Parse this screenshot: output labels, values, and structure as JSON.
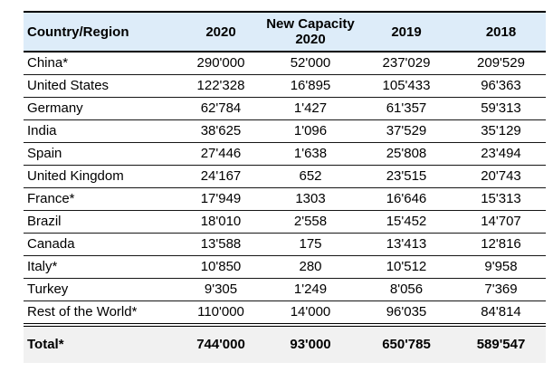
{
  "page": {
    "background": "#ffffff"
  },
  "table": {
    "header_bg": "#ddecf9",
    "total_bg": "#f1f1f1",
    "border_color": "#000000",
    "columns": [
      {
        "label": "Country/Region"
      },
      {
        "label": "2020"
      },
      {
        "label": "New Capacity\n2020"
      },
      {
        "label": "2019"
      },
      {
        "label": "2018"
      }
    ],
    "rows": [
      {
        "label": "China*",
        "values": [
          "290'000",
          "52'000",
          "237'029",
          "209'529"
        ]
      },
      {
        "label": "United States",
        "values": [
          "122'328",
          "16'895",
          "105'433",
          "96'363"
        ]
      },
      {
        "label": "Germany",
        "values": [
          "62'784",
          "1'427",
          "61'357",
          "59'313"
        ]
      },
      {
        "label": "India",
        "values": [
          "38'625",
          "1'096",
          "37'529",
          "35'129"
        ]
      },
      {
        "label": "Spain",
        "values": [
          "27'446",
          "1'638",
          "25'808",
          "23'494"
        ]
      },
      {
        "label": "United Kingdom",
        "values": [
          "24'167",
          "652",
          "23'515",
          "20'743"
        ]
      },
      {
        "label": "France*",
        "values": [
          "17'949",
          "1303",
          "16'646",
          "15'313"
        ]
      },
      {
        "label": "Brazil",
        "values": [
          "18'010",
          "2'558",
          "15'452",
          "14'707"
        ]
      },
      {
        "label": "Canada",
        "values": [
          "13'588",
          "175",
          "13'413",
          "12'816"
        ]
      },
      {
        "label": "Italy*",
        "values": [
          "10'850",
          "280",
          "10'512",
          "9'958"
        ]
      },
      {
        "label": "Turkey",
        "values": [
          "9'305",
          "1'249",
          "8'056",
          "7'369"
        ]
      },
      {
        "label": "Rest of the World*",
        "values": [
          "110'000",
          "14'000",
          "96'035",
          "84'814"
        ]
      }
    ],
    "total_row": {
      "label": "Total*",
      "values": [
        "744'000",
        "93'000",
        "650'785",
        "589'547"
      ]
    }
  },
  "chart_data": {
    "type": "table",
    "title": "",
    "columns": [
      "Country/Region",
      "2020",
      "New Capacity 2020",
      "2019",
      "2018"
    ],
    "rows": [
      [
        "China*",
        "290'000",
        "52'000",
        "237'029",
        "209'529"
      ],
      [
        "United States",
        "122'328",
        "16'895",
        "105'433",
        "96'363"
      ],
      [
        "Germany",
        "62'784",
        "1'427",
        "61'357",
        "59'313"
      ],
      [
        "India",
        "38'625",
        "1'096",
        "37'529",
        "35'129"
      ],
      [
        "Spain",
        "27'446",
        "1'638",
        "25'808",
        "23'494"
      ],
      [
        "United Kingdom",
        "24'167",
        "652",
        "23'515",
        "20'743"
      ],
      [
        "France*",
        "17'949",
        "1303",
        "16'646",
        "15'313"
      ],
      [
        "Brazil",
        "18'010",
        "2'558",
        "15'452",
        "14'707"
      ],
      [
        "Canada",
        "13'588",
        "175",
        "13'413",
        "12'816"
      ],
      [
        "Italy*",
        "10'850",
        "280",
        "10'512",
        "9'958"
      ],
      [
        "Turkey",
        "9'305",
        "1'249",
        "8'056",
        "7'369"
      ],
      [
        "Rest of the World*",
        "110'000",
        "14'000",
        "96'035",
        "84'814"
      ],
      [
        "Total*",
        "744'000",
        "93'000",
        "650'785",
        "589'547"
      ]
    ],
    "layout": {
      "header_background": "#ddecf9",
      "total_row_background": "#f1f1f1",
      "double_rule_above_total": true,
      "number_alignment": "center",
      "thousands_separator": "'"
    }
  }
}
